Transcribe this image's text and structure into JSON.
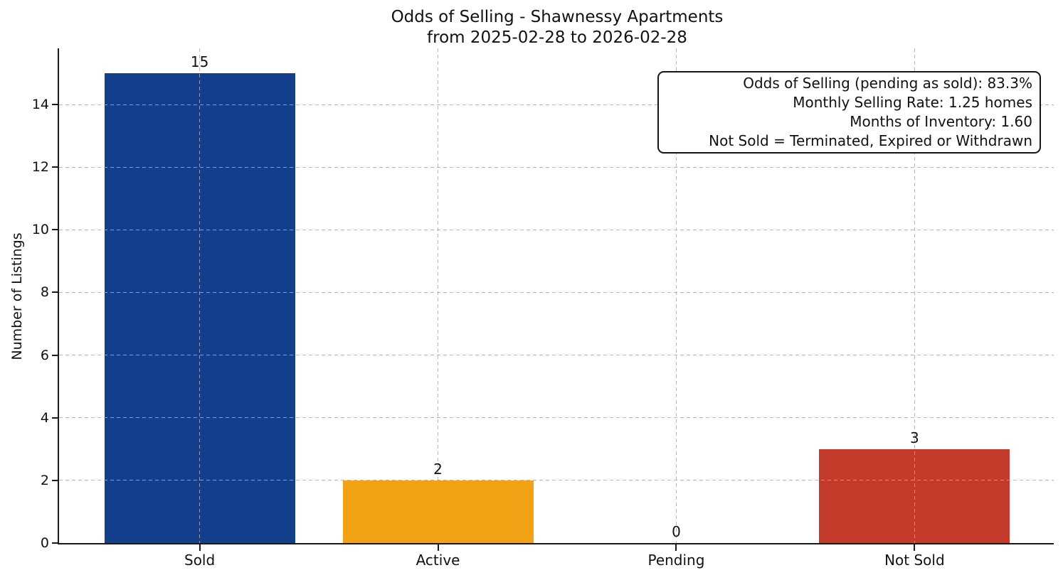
{
  "title": {
    "line1": "Odds of Selling - Shawnessy Apartments",
    "line2": "from 2025-02-28 to 2026-02-28"
  },
  "annotation": {
    "lines": [
      "Odds of Selling (pending as sold): 83.3%",
      "Monthly Selling Rate: 1.25 homes",
      "Months of Inventory: 1.60",
      "Not Sold = Terminated, Expired or Withdrawn"
    ]
  },
  "chart_data": {
    "type": "bar",
    "title": "Odds of Selling - Shawnessy Apartments\nfrom 2025-02-28 to 2026-02-28",
    "xlabel": "",
    "ylabel": "Number of Listings",
    "categories": [
      "Sold",
      "Active",
      "Pending",
      "Not Sold"
    ],
    "values": [
      15,
      2,
      0,
      3
    ],
    "bar_colors": [
      "#133f8d",
      "#f0a114",
      null,
      "#c43b2b"
    ],
    "yticks": [
      0,
      2,
      4,
      6,
      8,
      10,
      12,
      14
    ],
    "ylim": [
      0,
      15.84
    ],
    "bar_width_fraction": 0.8,
    "grid": "dashed, both axes, drawn over bars",
    "legend_position": "none",
    "annotation_lines": [
      "Odds of Selling (pending as sold): 83.3%",
      "Monthly Selling Rate: 1.25 homes",
      "Months of Inventory: 1.60",
      "Not Sold = Terminated, Expired or Withdrawn"
    ],
    "colors": {
      "axis": "#1a1a1a",
      "gridline": "#acacac",
      "text": "#111111",
      "background": "#ffffff"
    }
  }
}
